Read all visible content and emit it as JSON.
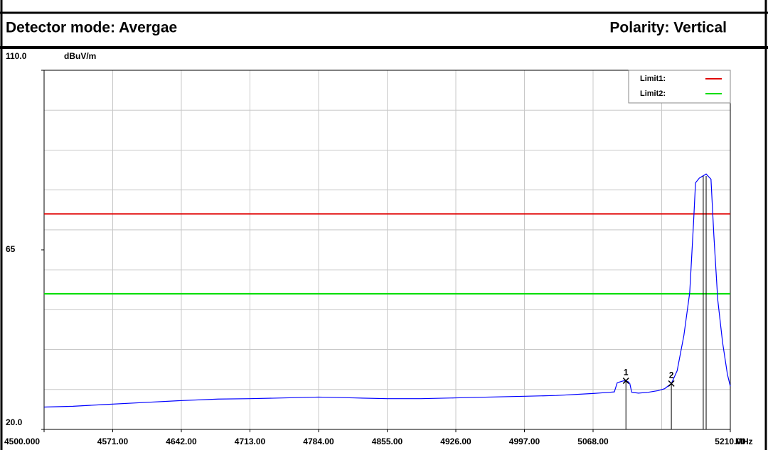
{
  "chart_data": {
    "type": "line",
    "detector_label": "Detector mode: Avergae",
    "polarity_label": "Polarity: Vertical",
    "y_unit": "dBuV/m",
    "x_unit": "MHz",
    "xlim": [
      4500,
      5210
    ],
    "ylim": [
      20,
      110
    ],
    "yticks": [
      {
        "value": 20,
        "label": "20.0"
      },
      65,
      {
        "value": 110,
        "label": "110.0"
      }
    ],
    "ygrid": [
      30,
      40,
      50,
      60,
      70,
      80,
      90,
      100
    ],
    "xticks": [
      {
        "value": 4500,
        "label": "4500.000"
      },
      {
        "value": 4571,
        "label": "4571.00"
      },
      {
        "value": 4642,
        "label": "4642.00"
      },
      {
        "value": 4713,
        "label": "4713.00"
      },
      {
        "value": 4784,
        "label": "4784.00"
      },
      {
        "value": 4855,
        "label": "4855.00"
      },
      {
        "value": 4926,
        "label": "4926.00"
      },
      {
        "value": 4997,
        "label": "4997.00"
      },
      {
        "value": 5068,
        "label": "5068.00"
      },
      {
        "value": 5210,
        "label": "5210.00"
      }
    ],
    "xgrid": [
      4571,
      4642,
      4713,
      4784,
      4855,
      4926,
      4997,
      5068,
      5139
    ],
    "grid": true,
    "limits": [
      {
        "name": "Limit1:",
        "color": "#e00000",
        "value": 74
      },
      {
        "name": "Limit2:",
        "color": "#00dd00",
        "value": 54
      }
    ],
    "trace": {
      "color": "#0000ff",
      "x": [
        4500,
        4530,
        4560,
        4600,
        4640,
        4680,
        4713,
        4750,
        4784,
        4820,
        4855,
        4890,
        4926,
        4960,
        4997,
        5030,
        5068,
        5085,
        5090,
        5093,
        5100,
        5104,
        5106,
        5108,
        5115,
        5125,
        5135,
        5142,
        5149,
        5155,
        5162,
        5168,
        5172,
        5174,
        5178,
        5185,
        5190,
        5193,
        5197,
        5202,
        5207,
        5210
      ],
      "values": [
        25.6,
        25.8,
        26.2,
        26.7,
        27.2,
        27.6,
        27.7,
        27.9,
        28.1,
        27.9,
        27.7,
        27.7,
        27.9,
        28.1,
        28.3,
        28.5,
        29.0,
        29.3,
        29.4,
        31.7,
        32.2,
        32.0,
        31.5,
        29.3,
        29.1,
        29.3,
        29.7,
        30.2,
        31.5,
        34.7,
        43.6,
        54.3,
        72.0,
        81.8,
        83.0,
        84.0,
        82.7,
        68.5,
        52.5,
        41.8,
        33.8,
        30.8
      ]
    },
    "markers": [
      {
        "label": "1",
        "x": 5102,
        "y": 32.2
      },
      {
        "label": "2",
        "x": 5149,
        "y": 31.5
      },
      {
        "label": null,
        "x": 5182,
        "y": 83.5
      },
      {
        "label": null,
        "x": 5185,
        "y": 83.5
      }
    ]
  }
}
